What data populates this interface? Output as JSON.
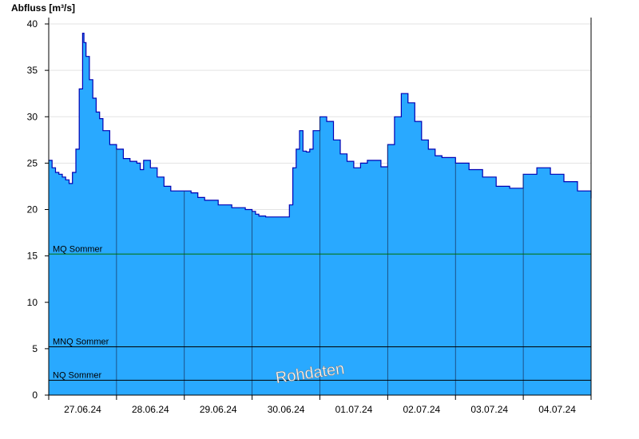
{
  "chart_data": {
    "type": "area",
    "ylabel": "Abfluss [m³/s]",
    "ylim": [
      0,
      40
    ],
    "yticks": [
      0,
      5,
      10,
      15,
      20,
      25,
      30,
      35,
      40
    ],
    "xlim": [
      0,
      8
    ],
    "xtick_positions": [
      0.5,
      1.5,
      2.5,
      3.5,
      4.5,
      5.5,
      6.5,
      7.5
    ],
    "xtick_labels": [
      "27.06.24",
      "28.06.24",
      "29.06.24",
      "30.06.24",
      "01.07.24",
      "02.07.24",
      "03.07.24",
      "04.07.24"
    ],
    "day_boundaries": [
      1,
      2,
      3,
      4,
      5,
      6,
      7
    ],
    "grid": "horizontal, light gray",
    "fill_color": "#29a9ff",
    "line_color": "#0000b4",
    "reference_lines": [
      {
        "name": "MQ Sommer",
        "value": 15.2,
        "color": "#007000"
      },
      {
        "name": "MNQ Sommer",
        "value": 5.2,
        "color": "#000000"
      },
      {
        "name": "NQ Sommer",
        "value": 1.6,
        "color": "#000000"
      }
    ],
    "watermark": "Rohdaten",
    "series": [
      {
        "x": [
          0,
          0.05,
          0.1,
          0.15,
          0.2,
          0.25,
          0.3,
          0.35,
          0.4,
          0.45,
          0.5,
          0.52,
          0.55,
          0.6,
          0.65,
          0.7,
          0.75,
          0.8,
          0.9,
          1.0,
          1.1,
          1.2,
          1.3,
          1.35,
          1.4,
          1.5,
          1.6,
          1.7,
          1.8,
          2.0,
          2.1,
          2.2,
          2.3,
          2.5,
          2.7,
          2.9,
          3.0,
          3.05,
          3.1,
          3.2,
          3.4,
          3.55,
          3.6,
          3.65,
          3.7,
          3.75,
          3.8,
          3.85,
          3.9,
          4.0,
          4.1,
          4.2,
          4.3,
          4.4,
          4.5,
          4.6,
          4.7,
          4.8,
          4.9,
          5.0,
          5.1,
          5.2,
          5.3,
          5.4,
          5.5,
          5.6,
          5.7,
          5.8,
          6.0,
          6.2,
          6.4,
          6.6,
          6.8,
          7.0,
          7.2,
          7.4,
          7.6,
          7.8,
          8.0
        ],
        "y": [
          25.3,
          24.5,
          24.0,
          23.8,
          23.5,
          23.2,
          22.8,
          24.0,
          26.5,
          33.0,
          39.0,
          38.0,
          36.5,
          34.0,
          32.0,
          30.5,
          29.8,
          28.5,
          27.0,
          26.5,
          25.5,
          25.2,
          25.0,
          24.3,
          25.3,
          24.5,
          23.5,
          22.5,
          22.0,
          22.0,
          21.8,
          21.3,
          21.0,
          20.5,
          20.2,
          20.0,
          19.8,
          19.5,
          19.3,
          19.2,
          19.2,
          20.5,
          24.5,
          26.5,
          28.5,
          26.3,
          26.2,
          26.5,
          28.5,
          30.0,
          29.5,
          27.5,
          26.0,
          25.2,
          24.5,
          25.0,
          25.3,
          25.3,
          24.6,
          27.0,
          30.0,
          32.5,
          31.5,
          29.5,
          27.5,
          26.5,
          25.8,
          25.6,
          25.0,
          24.3,
          23.5,
          22.5,
          22.3,
          23.8,
          24.5,
          23.8,
          23.0,
          22.0,
          21.2
        ]
      }
    ]
  }
}
